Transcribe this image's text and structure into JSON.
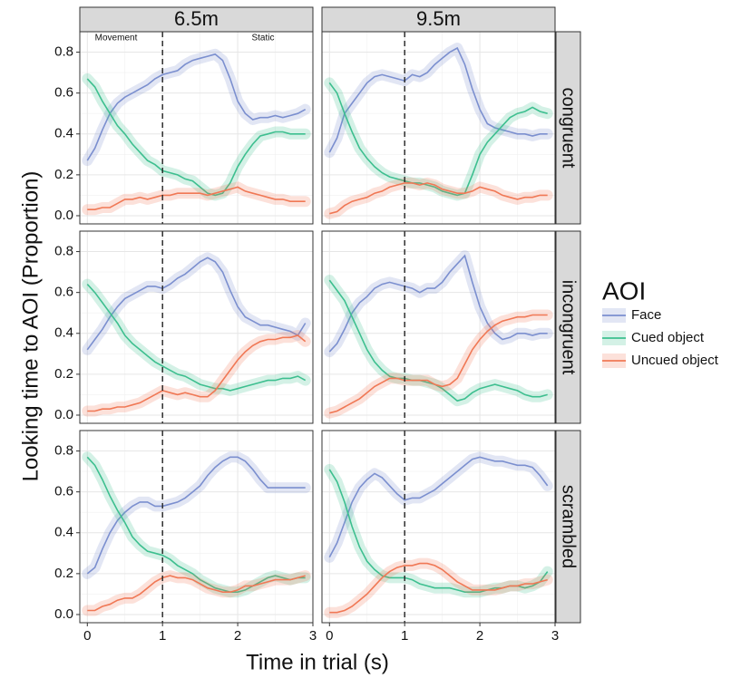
{
  "chart_data": {
    "type": "line",
    "ylabel": "Looking time to AOI (Proportion)",
    "xlabel": "Time in trial (s)",
    "legend_title": "AOI",
    "columns": [
      "6.5m",
      "9.5m"
    ],
    "rows": [
      "congruent",
      "incongruent",
      "scrambled"
    ],
    "annotations": [
      "Movement",
      "Static"
    ],
    "series": [
      {
        "name": "Face",
        "color": "#7b8fcf"
      },
      {
        "name": "Cued object",
        "color": "#3dbf8f"
      },
      {
        "name": "Uncued object",
        "color": "#f07855"
      }
    ],
    "xlim": [
      -0.1,
      3.0
    ],
    "ylim": [
      -0.04,
      0.9
    ],
    "xticks": [
      0,
      1,
      2,
      3
    ],
    "yticks": [
      {
        "value": 0,
        "label": "0.0"
      },
      0.2,
      0.4,
      0.6,
      0.8
    ],
    "vline": 1,
    "grid": true,
    "x": [
      0,
      0.1,
      0.2,
      0.3,
      0.4,
      0.5,
      0.6,
      0.7,
      0.8,
      0.9,
      1.0,
      1.1,
      1.2,
      1.3,
      1.4,
      1.5,
      1.6,
      1.7,
      1.8,
      1.9,
      2.0,
      2.1,
      2.2,
      2.3,
      2.4,
      2.5,
      2.6,
      2.7,
      2.8,
      2.9
    ],
    "panels": [
      {
        "values": [
          [
            0.27,
            0.33,
            0.42,
            0.5,
            0.55,
            0.58,
            0.6,
            0.62,
            0.64,
            0.67,
            0.69,
            0.7,
            0.71,
            0.74,
            0.76,
            0.77,
            0.78,
            0.79,
            0.76,
            0.67,
            0.56,
            0.5,
            0.47,
            0.48,
            0.48,
            0.49,
            0.48,
            0.49,
            0.5,
            0.52
          ],
          [
            0.67,
            0.63,
            0.56,
            0.5,
            0.44,
            0.4,
            0.35,
            0.31,
            0.27,
            0.25,
            0.22,
            0.21,
            0.2,
            0.18,
            0.17,
            0.14,
            0.11,
            0.1,
            0.11,
            0.16,
            0.24,
            0.3,
            0.35,
            0.39,
            0.4,
            0.41,
            0.41,
            0.4,
            0.4,
            0.4
          ],
          [
            0.03,
            0.03,
            0.04,
            0.04,
            0.06,
            0.08,
            0.08,
            0.09,
            0.08,
            0.09,
            0.1,
            0.1,
            0.11,
            0.11,
            0.11,
            0.11,
            0.1,
            0.11,
            0.12,
            0.13,
            0.14,
            0.12,
            0.11,
            0.1,
            0.09,
            0.08,
            0.08,
            0.07,
            0.07,
            0.07
          ]
        ]
      },
      {
        "values": [
          [
            0.31,
            0.38,
            0.5,
            0.55,
            0.6,
            0.65,
            0.68,
            0.69,
            0.68,
            0.67,
            0.66,
            0.69,
            0.68,
            0.7,
            0.74,
            0.77,
            0.8,
            0.82,
            0.74,
            0.62,
            0.52,
            0.45,
            0.43,
            0.42,
            0.41,
            0.4,
            0.4,
            0.39,
            0.4,
            0.4
          ],
          [
            0.65,
            0.6,
            0.5,
            0.41,
            0.33,
            0.28,
            0.24,
            0.21,
            0.19,
            0.18,
            0.17,
            0.16,
            0.16,
            0.15,
            0.14,
            0.12,
            0.11,
            0.1,
            0.11,
            0.2,
            0.3,
            0.36,
            0.4,
            0.44,
            0.48,
            0.5,
            0.51,
            0.53,
            0.51,
            0.5
          ],
          [
            0.01,
            0.02,
            0.05,
            0.07,
            0.08,
            0.09,
            0.11,
            0.12,
            0.14,
            0.15,
            0.16,
            0.16,
            0.15,
            0.16,
            0.15,
            0.13,
            0.12,
            0.11,
            0.11,
            0.12,
            0.14,
            0.13,
            0.12,
            0.1,
            0.09,
            0.08,
            0.09,
            0.09,
            0.1,
            0.1
          ]
        ]
      },
      {
        "values": [
          [
            0.32,
            0.37,
            0.42,
            0.48,
            0.53,
            0.57,
            0.59,
            0.61,
            0.63,
            0.63,
            0.62,
            0.64,
            0.67,
            0.69,
            0.72,
            0.75,
            0.77,
            0.75,
            0.7,
            0.61,
            0.53,
            0.48,
            0.46,
            0.44,
            0.44,
            0.43,
            0.42,
            0.41,
            0.39,
            0.45
          ],
          [
            0.64,
            0.6,
            0.55,
            0.5,
            0.45,
            0.39,
            0.35,
            0.32,
            0.29,
            0.26,
            0.24,
            0.22,
            0.2,
            0.19,
            0.17,
            0.15,
            0.14,
            0.13,
            0.13,
            0.12,
            0.13,
            0.14,
            0.15,
            0.16,
            0.17,
            0.17,
            0.18,
            0.18,
            0.19,
            0.17
          ],
          [
            0.02,
            0.02,
            0.03,
            0.03,
            0.04,
            0.04,
            0.05,
            0.06,
            0.08,
            0.1,
            0.12,
            0.11,
            0.1,
            0.11,
            0.1,
            0.09,
            0.09,
            0.12,
            0.17,
            0.22,
            0.27,
            0.31,
            0.34,
            0.36,
            0.37,
            0.37,
            0.38,
            0.38,
            0.39,
            0.36
          ]
        ]
      },
      {
        "values": [
          [
            0.31,
            0.35,
            0.42,
            0.5,
            0.55,
            0.58,
            0.62,
            0.64,
            0.65,
            0.64,
            0.63,
            0.62,
            0.6,
            0.62,
            0.62,
            0.65,
            0.7,
            0.74,
            0.78,
            0.65,
            0.53,
            0.45,
            0.4,
            0.37,
            0.38,
            0.4,
            0.4,
            0.39,
            0.4,
            0.4
          ],
          [
            0.66,
            0.61,
            0.56,
            0.48,
            0.4,
            0.32,
            0.26,
            0.22,
            0.19,
            0.18,
            0.18,
            0.17,
            0.17,
            0.16,
            0.15,
            0.13,
            0.1,
            0.07,
            0.08,
            0.11,
            0.13,
            0.14,
            0.15,
            0.14,
            0.13,
            0.12,
            0.1,
            0.09,
            0.09,
            0.1
          ],
          [
            0.01,
            0.02,
            0.04,
            0.06,
            0.08,
            0.11,
            0.14,
            0.16,
            0.18,
            0.18,
            0.17,
            0.17,
            0.17,
            0.17,
            0.15,
            0.14,
            0.15,
            0.18,
            0.25,
            0.32,
            0.37,
            0.41,
            0.44,
            0.46,
            0.47,
            0.48,
            0.48,
            0.49,
            0.49,
            0.49
          ]
        ]
      },
      {
        "values": [
          [
            0.2,
            0.23,
            0.32,
            0.4,
            0.46,
            0.5,
            0.53,
            0.55,
            0.55,
            0.53,
            0.53,
            0.54,
            0.55,
            0.57,
            0.6,
            0.63,
            0.68,
            0.72,
            0.75,
            0.77,
            0.77,
            0.75,
            0.71,
            0.66,
            0.62,
            0.62,
            0.62,
            0.62,
            0.62,
            0.62
          ],
          [
            0.77,
            0.73,
            0.66,
            0.58,
            0.51,
            0.45,
            0.38,
            0.34,
            0.31,
            0.3,
            0.29,
            0.27,
            0.24,
            0.22,
            0.2,
            0.17,
            0.15,
            0.13,
            0.12,
            0.11,
            0.11,
            0.12,
            0.14,
            0.16,
            0.18,
            0.19,
            0.18,
            0.17,
            0.18,
            0.18
          ],
          [
            0.02,
            0.02,
            0.04,
            0.05,
            0.07,
            0.08,
            0.08,
            0.1,
            0.13,
            0.16,
            0.18,
            0.19,
            0.18,
            0.18,
            0.17,
            0.15,
            0.13,
            0.12,
            0.11,
            0.11,
            0.12,
            0.14,
            0.14,
            0.15,
            0.16,
            0.17,
            0.17,
            0.17,
            0.18,
            0.19
          ]
        ]
      },
      {
        "values": [
          [
            0.28,
            0.35,
            0.45,
            0.55,
            0.62,
            0.66,
            0.69,
            0.67,
            0.63,
            0.59,
            0.56,
            0.57,
            0.57,
            0.59,
            0.61,
            0.64,
            0.67,
            0.7,
            0.73,
            0.76,
            0.77,
            0.76,
            0.75,
            0.75,
            0.74,
            0.73,
            0.73,
            0.72,
            0.68,
            0.63
          ],
          [
            0.71,
            0.65,
            0.55,
            0.43,
            0.33,
            0.26,
            0.22,
            0.19,
            0.18,
            0.18,
            0.18,
            0.17,
            0.15,
            0.14,
            0.13,
            0.13,
            0.13,
            0.12,
            0.11,
            0.11,
            0.11,
            0.12,
            0.13,
            0.13,
            0.14,
            0.14,
            0.13,
            0.14,
            0.16,
            0.21
          ],
          [
            0.01,
            0.01,
            0.02,
            0.04,
            0.07,
            0.1,
            0.14,
            0.18,
            0.21,
            0.23,
            0.24,
            0.24,
            0.25,
            0.25,
            0.24,
            0.22,
            0.19,
            0.16,
            0.14,
            0.12,
            0.12,
            0.12,
            0.12,
            0.13,
            0.14,
            0.14,
            0.15,
            0.15,
            0.16,
            0.17
          ]
        ]
      }
    ]
  }
}
